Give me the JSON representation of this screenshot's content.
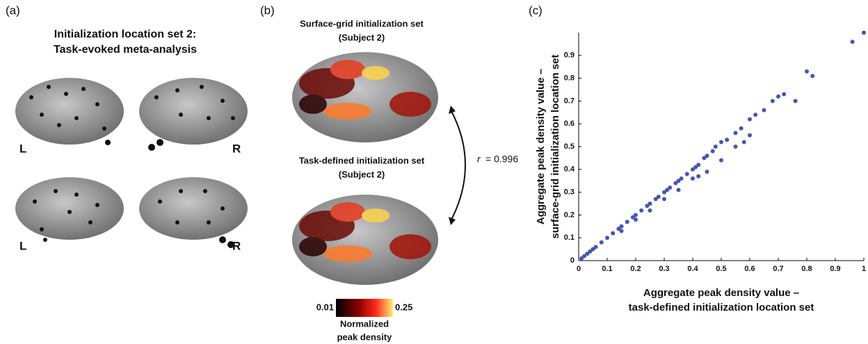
{
  "panels": {
    "a": {
      "label": "(a)",
      "title_lines": [
        "Initialization location set 2:",
        "Task-evoked meta-analysis"
      ],
      "hemisphere_labels": [
        "L",
        "R",
        "L",
        "R"
      ]
    },
    "b": {
      "label": "(b)",
      "top_title": [
        "Surface-grid initialization set",
        "(Subject 2)"
      ],
      "bottom_title": [
        "Task-defined initialization set",
        "(Subject 2)"
      ],
      "correlation_symbol": "r",
      "correlation_value": "= 0.996",
      "colorbar_min": "0.01",
      "colorbar_max": "0.25",
      "colorbar_label": [
        "Normalized",
        "peak density"
      ]
    },
    "c": {
      "label": "(c)"
    }
  },
  "chart_data": {
    "type": "scatter",
    "x_label": [
      "Aggregate peak density value –",
      "task-defined initialization location set"
    ],
    "y_label": [
      "Aggregate peak density value –",
      "surface-grid initialization location set"
    ],
    "color": "#4456b4",
    "x": [
      0.01,
      0.02,
      0.03,
      0.04,
      0.05,
      0.06,
      0.08,
      0.1,
      0.12,
      0.14,
      0.15,
      0.17,
      0.19,
      0.2,
      0.22,
      0.24,
      0.25,
      0.27,
      0.28,
      0.3,
      0.31,
      0.32,
      0.34,
      0.35,
      0.36,
      0.38,
      0.4,
      0.41,
      0.42,
      0.44,
      0.45,
      0.47,
      0.48,
      0.5,
      0.52,
      0.55,
      0.57,
      0.6,
      0.62,
      0.65,
      0.68,
      0.7,
      0.72,
      0.76,
      0.8,
      0.82,
      0.96,
      1.0,
      0.3,
      0.4,
      0.45,
      0.5,
      0.55,
      0.6,
      0.25,
      0.35,
      0.15,
      0.2,
      0.42,
      0.58
    ],
    "y": [
      0.01,
      0.02,
      0.03,
      0.04,
      0.05,
      0.06,
      0.08,
      0.1,
      0.12,
      0.14,
      0.15,
      0.17,
      0.19,
      0.2,
      0.22,
      0.24,
      0.25,
      0.27,
      0.28,
      0.3,
      0.31,
      0.32,
      0.34,
      0.35,
      0.36,
      0.38,
      0.4,
      0.41,
      0.42,
      0.45,
      0.46,
      0.48,
      0.5,
      0.52,
      0.53,
      0.56,
      0.58,
      0.62,
      0.64,
      0.66,
      0.7,
      0.72,
      0.73,
      0.7,
      0.83,
      0.81,
      0.96,
      1.0,
      0.27,
      0.36,
      0.39,
      0.44,
      0.5,
      0.55,
      0.22,
      0.31,
      0.13,
      0.18,
      0.37,
      0.52
    ],
    "xlim": [
      0,
      1
    ],
    "ylim": [
      0,
      1
    ],
    "xticks": [
      0,
      0.1,
      0.2,
      0.3,
      0.4,
      0.5,
      0.6,
      0.7,
      0.8,
      0.9,
      1
    ],
    "yticks": [
      0,
      0.1,
      0.2,
      0.3,
      0.4,
      0.5,
      0.6,
      0.7,
      0.8,
      0.9
    ]
  }
}
